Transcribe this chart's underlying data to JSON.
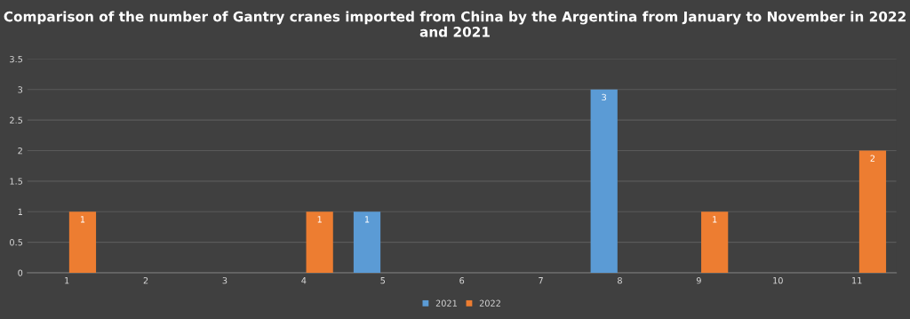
{
  "chart_data": {
    "type": "bar",
    "title": "Comparison of the number of Gantry cranes imported from China by the Argentina from January to November in 2022 and 2021",
    "categories": [
      "1",
      "2",
      "3",
      "4",
      "5",
      "6",
      "7",
      "8",
      "9",
      "10",
      "11"
    ],
    "series": [
      {
        "name": "2021",
        "color": "#5b9bd5",
        "values": [
          0,
          0,
          0,
          0,
          1,
          0,
          0,
          3,
          0,
          0,
          0
        ],
        "value_labels": [
          null,
          null,
          null,
          null,
          "1",
          null,
          null,
          "3",
          null,
          null,
          null
        ]
      },
      {
        "name": "2022",
        "color": "#ed7d31",
        "values": [
          1,
          0,
          0,
          1,
          0,
          0,
          0,
          0,
          1,
          0,
          2
        ],
        "value_labels": [
          "1",
          null,
          null,
          "1",
          null,
          null,
          null,
          null,
          "1",
          null,
          "2"
        ]
      }
    ],
    "ylim": [
      0,
      3.5
    ],
    "yticks": [
      0,
      0.5,
      1,
      1.5,
      2,
      2.5,
      3,
      3.5
    ],
    "grid": "y",
    "legend": "bottom"
  }
}
